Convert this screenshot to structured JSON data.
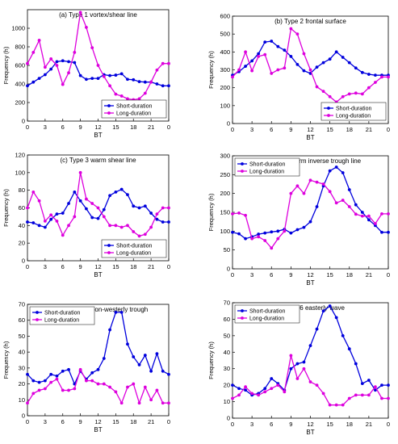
{
  "chart_data": [
    {
      "type": "line",
      "title": "(a) Type 1   vortex/shear line",
      "xlabel": "BT",
      "ylabel": "Frequency (h)",
      "x": [
        0,
        1,
        2,
        3,
        4,
        5,
        6,
        7,
        8,
        9,
        10,
        11,
        12,
        13,
        14,
        15,
        16,
        17,
        18,
        19,
        20,
        21,
        22,
        23
      ],
      "xticks": [
        "0",
        "3",
        "6",
        "9",
        "12",
        "15",
        "18",
        "21",
        "0"
      ],
      "ylim": [
        0,
        1200
      ],
      "yticks": [
        0,
        200,
        400,
        600,
        800,
        1000
      ],
      "legend": "bottom-right",
      "series": [
        {
          "name": "Short-duration",
          "color": "#0000dd",
          "values": [
            380,
            420,
            460,
            500,
            560,
            640,
            650,
            640,
            630,
            490,
            450,
            460,
            460,
            500,
            490,
            495,
            510,
            450,
            445,
            425,
            420,
            420,
            400,
            380
          ]
        },
        {
          "name": "Long-duration",
          "color": "#dd00dd",
          "values": [
            620,
            740,
            870,
            580,
            670,
            600,
            395,
            520,
            740,
            1170,
            1010,
            790,
            600,
            480,
            380,
            290,
            270,
            240,
            230,
            240,
            300,
            420,
            550,
            620
          ]
        }
      ]
    },
    {
      "type": "line",
      "title": "(b) Type 2   frontal surface",
      "xlabel": "BT",
      "ylabel": "Frequency (h)",
      "x": [
        0,
        1,
        2,
        3,
        4,
        5,
        6,
        7,
        8,
        9,
        10,
        11,
        12,
        13,
        14,
        15,
        16,
        17,
        18,
        19,
        20,
        21,
        22,
        23
      ],
      "xticks": [
        "0",
        "3",
        "6",
        "9",
        "12",
        "15",
        "18",
        "21",
        "0"
      ],
      "ylim": [
        0,
        600
      ],
      "yticks": [
        0,
        100,
        200,
        300,
        400,
        500,
        600
      ],
      "legend": "bottom-right",
      "series": [
        {
          "name": "Short-duration",
          "color": "#0000dd",
          "values": [
            270,
            290,
            320,
            350,
            390,
            455,
            460,
            430,
            410,
            375,
            330,
            295,
            280,
            315,
            340,
            360,
            400,
            370,
            340,
            310,
            285,
            275,
            270,
            270
          ]
        },
        {
          "name": "Long-duration",
          "color": "#dd00dd",
          "values": [
            260,
            300,
            400,
            295,
            375,
            385,
            280,
            300,
            310,
            530,
            500,
            390,
            300,
            205,
            180,
            150,
            120,
            150,
            165,
            170,
            165,
            200,
            230,
            260
          ]
        }
      ]
    },
    {
      "type": "line",
      "title": "(c) Type 3   warm shear line",
      "xlabel": "BT",
      "ylabel": "Frequency (h)",
      "x": [
        0,
        1,
        2,
        3,
        4,
        5,
        6,
        7,
        8,
        9,
        10,
        11,
        12,
        13,
        14,
        15,
        16,
        17,
        18,
        19,
        20,
        21,
        22,
        23
      ],
      "xticks": [
        "0",
        "3",
        "6",
        "9",
        "12",
        "15",
        "18",
        "21",
        "0"
      ],
      "ylim": [
        0,
        120
      ],
      "yticks": [
        0,
        20,
        40,
        60,
        80,
        100,
        120
      ],
      "legend": "bottom-right",
      "series": [
        {
          "name": "Short-duration",
          "color": "#0000dd",
          "values": [
            44,
            43,
            40,
            38,
            47,
            53,
            54,
            65,
            78,
            68,
            59,
            49,
            48,
            58,
            74,
            78,
            81,
            75,
            62,
            60,
            62,
            54,
            47,
            44
          ]
        },
        {
          "name": "Long-duration",
          "color": "#dd00dd",
          "values": [
            60,
            78,
            68,
            45,
            52,
            45,
            29,
            40,
            50,
            100,
            70,
            65,
            60,
            50,
            40,
            40,
            38,
            40,
            33,
            28,
            30,
            38,
            53,
            60
          ]
        }
      ]
    },
    {
      "type": "line",
      "title": "(d) Type 4   warm inverse trough line",
      "xlabel": "BT",
      "ylabel": "Frequency (h)",
      "x": [
        0,
        1,
        2,
        3,
        4,
        5,
        6,
        7,
        8,
        9,
        10,
        11,
        12,
        13,
        14,
        15,
        16,
        17,
        18,
        19,
        20,
        21,
        22,
        23
      ],
      "xticks": [
        "0",
        "3",
        "6",
        "9",
        "12",
        "15",
        "18",
        "21",
        "0"
      ],
      "ylim": [
        0,
        300
      ],
      "yticks": [
        0,
        50,
        100,
        150,
        200,
        250,
        300
      ],
      "legend": "top-left",
      "series": [
        {
          "name": "Short-duration",
          "color": "#0000dd",
          "values": [
            97,
            93,
            80,
            85,
            92,
            95,
            98,
            100,
            105,
            95,
            104,
            110,
            125,
            165,
            220,
            260,
            270,
            255,
            210,
            170,
            150,
            130,
            115,
            97
          ]
        },
        {
          "name": "Long-duration",
          "color": "#dd00dd",
          "values": [
            146,
            148,
            142,
            80,
            85,
            75,
            55,
            80,
            100,
            200,
            220,
            200,
            235,
            230,
            225,
            205,
            175,
            182,
            165,
            145,
            140,
            140,
            120,
            146
          ]
        }
      ]
    },
    {
      "type": "line",
      "title": "(e) Type 5   typhoon-westerly trough",
      "xlabel": "BT",
      "ylabel": "Frequency (h)",
      "x": [
        0,
        1,
        2,
        3,
        4,
        5,
        6,
        7,
        8,
        9,
        10,
        11,
        12,
        13,
        14,
        15,
        16,
        17,
        18,
        19,
        20,
        21,
        22,
        23
      ],
      "xticks": [
        "0",
        "3",
        "6",
        "9",
        "12",
        "15",
        "18",
        "21",
        "0"
      ],
      "ylim": [
        0,
        70
      ],
      "yticks": [
        0,
        10,
        20,
        30,
        40,
        50,
        60,
        70
      ],
      "legend": "top-left",
      "series": [
        {
          "name": "Short-duration",
          "color": "#0000dd",
          "values": [
            26,
            22,
            21,
            22,
            26,
            25,
            28,
            29,
            20,
            28,
            23,
            27,
            29,
            36,
            54,
            65,
            65,
            45,
            37,
            32,
            38,
            28,
            39,
            28
          ]
        },
        {
          "name": "Long-duration",
          "color": "#dd00dd",
          "values": [
            8,
            14,
            16,
            17,
            21,
            23,
            16,
            16,
            17,
            29,
            22,
            22,
            20,
            20,
            18,
            15,
            8,
            18,
            20,
            8,
            18,
            10,
            16,
            8
          ]
        }
      ]
    },
    {
      "type": "line",
      "title": "(f) Type 6   easterly wave",
      "xlabel": "BT",
      "ylabel": "Frequency (h)",
      "x": [
        0,
        1,
        2,
        3,
        4,
        5,
        6,
        7,
        8,
        9,
        10,
        11,
        12,
        13,
        14,
        15,
        16,
        17,
        18,
        19,
        20,
        21,
        22,
        23
      ],
      "xticks": [
        "0",
        "3",
        "6",
        "9",
        "12",
        "15",
        "18",
        "21",
        "0"
      ],
      "ylim": [
        0,
        70
      ],
      "yticks": [
        0,
        10,
        20,
        30,
        40,
        50,
        60,
        70
      ],
      "legend": "top-left",
      "series": [
        {
          "name": "Short-duration",
          "color": "#0000dd",
          "values": [
            20,
            18,
            17,
            14,
            15,
            18,
            24,
            21,
            17,
            30,
            33,
            34,
            44,
            54,
            65,
            68,
            61,
            50,
            42,
            33,
            21,
            23,
            17,
            20
          ]
        },
        {
          "name": "Long-duration",
          "color": "#dd00dd",
          "values": [
            12,
            14,
            19,
            15,
            14,
            16,
            18,
            20,
            16,
            38,
            24,
            30,
            22,
            20,
            15,
            8,
            8,
            8,
            12,
            14,
            14,
            14,
            19,
            12
          ]
        }
      ]
    }
  ]
}
